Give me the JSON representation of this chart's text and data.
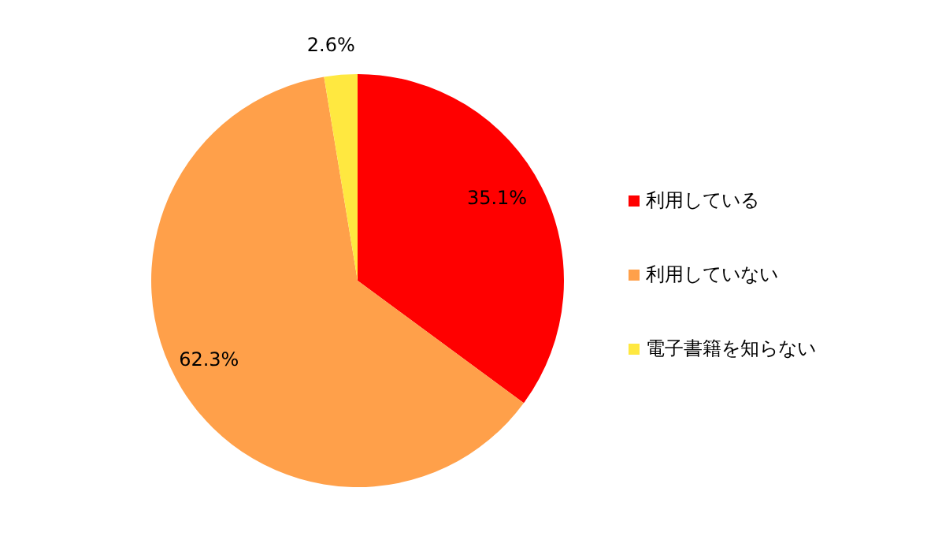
{
  "chart_data": {
    "type": "pie",
    "categories": [
      "利用している",
      "利用していない",
      "電子書籍を知らない"
    ],
    "values": [
      35.1,
      62.3,
      2.6
    ],
    "colors": [
      "#ff0000",
      "#ffa04a",
      "#ffe840"
    ],
    "value_labels": [
      "35.1%",
      "62.3%",
      "2.6%"
    ],
    "legend": "right"
  }
}
